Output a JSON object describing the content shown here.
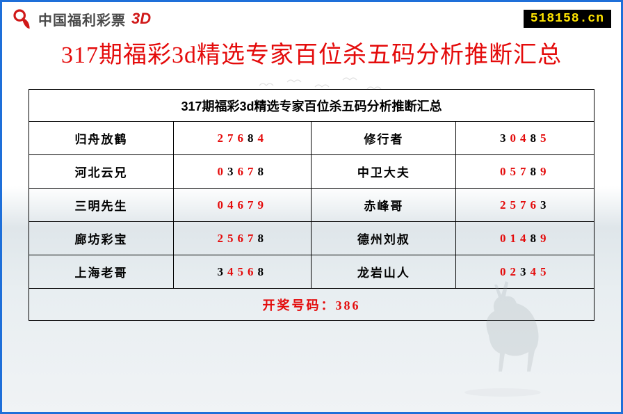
{
  "header": {
    "logo_text": "中国福利彩票",
    "logo_3d": "3D",
    "site": "518158.cn"
  },
  "title": "317期福彩3d精选专家百位杀五码分析推断汇总",
  "table": {
    "header": "317期福彩3d精选专家百位杀五码分析推断汇总",
    "rows": [
      {
        "name1": "归舟放鹤",
        "code1": [
          [
            "2",
            "r"
          ],
          [
            "7",
            "r"
          ],
          [
            "6",
            "r"
          ],
          [
            "8",
            "b"
          ],
          [
            "4",
            "r"
          ]
        ],
        "name2": "修行者",
        "code2": [
          [
            "3",
            "b"
          ],
          [
            "0",
            "r"
          ],
          [
            "4",
            "r"
          ],
          [
            "8",
            "b"
          ],
          [
            "5",
            "r"
          ]
        ]
      },
      {
        "name1": "河北云兄",
        "code1": [
          [
            "0",
            "r"
          ],
          [
            "3",
            "b"
          ],
          [
            "6",
            "r"
          ],
          [
            "7",
            "r"
          ],
          [
            "8",
            "b"
          ]
        ],
        "name2": "中卫大夫",
        "code2": [
          [
            "0",
            "r"
          ],
          [
            "5",
            "r"
          ],
          [
            "7",
            "r"
          ],
          [
            "8",
            "b"
          ],
          [
            "9",
            "r"
          ]
        ]
      },
      {
        "name1": "三明先生",
        "code1": [
          [
            "0",
            "r"
          ],
          [
            "4",
            "r"
          ],
          [
            "6",
            "r"
          ],
          [
            "7",
            "r"
          ],
          [
            "9",
            "r"
          ]
        ],
        "name2": "赤峰哥",
        "code2": [
          [
            "2",
            "r"
          ],
          [
            "5",
            "r"
          ],
          [
            "7",
            "r"
          ],
          [
            "6",
            "r"
          ],
          [
            "3",
            "b"
          ]
        ]
      },
      {
        "name1": "廊坊彩宝",
        "code1": [
          [
            "2",
            "r"
          ],
          [
            "5",
            "r"
          ],
          [
            "6",
            "r"
          ],
          [
            "7",
            "r"
          ],
          [
            "8",
            "b"
          ]
        ],
        "name2": "德州刘叔",
        "code2": [
          [
            "0",
            "r"
          ],
          [
            "1",
            "r"
          ],
          [
            "4",
            "r"
          ],
          [
            "8",
            "b"
          ],
          [
            "9",
            "r"
          ]
        ]
      },
      {
        "name1": "上海老哥",
        "code1": [
          [
            "3",
            "b"
          ],
          [
            "4",
            "r"
          ],
          [
            "5",
            "r"
          ],
          [
            "6",
            "r"
          ],
          [
            "8",
            "b"
          ]
        ],
        "name2": "龙岩山人",
        "code2": [
          [
            "0",
            "r"
          ],
          [
            "2",
            "r"
          ],
          [
            "3",
            "b"
          ],
          [
            "4",
            "r"
          ],
          [
            "5",
            "r"
          ]
        ]
      }
    ],
    "footer": "开奖号码：386"
  },
  "colors": {
    "border": "#1e6fd9",
    "title": "#e40b0b",
    "code_red": "#e40b0b",
    "code_black": "#000000",
    "badge_bg": "#000000",
    "badge_fg": "#ffe400"
  }
}
